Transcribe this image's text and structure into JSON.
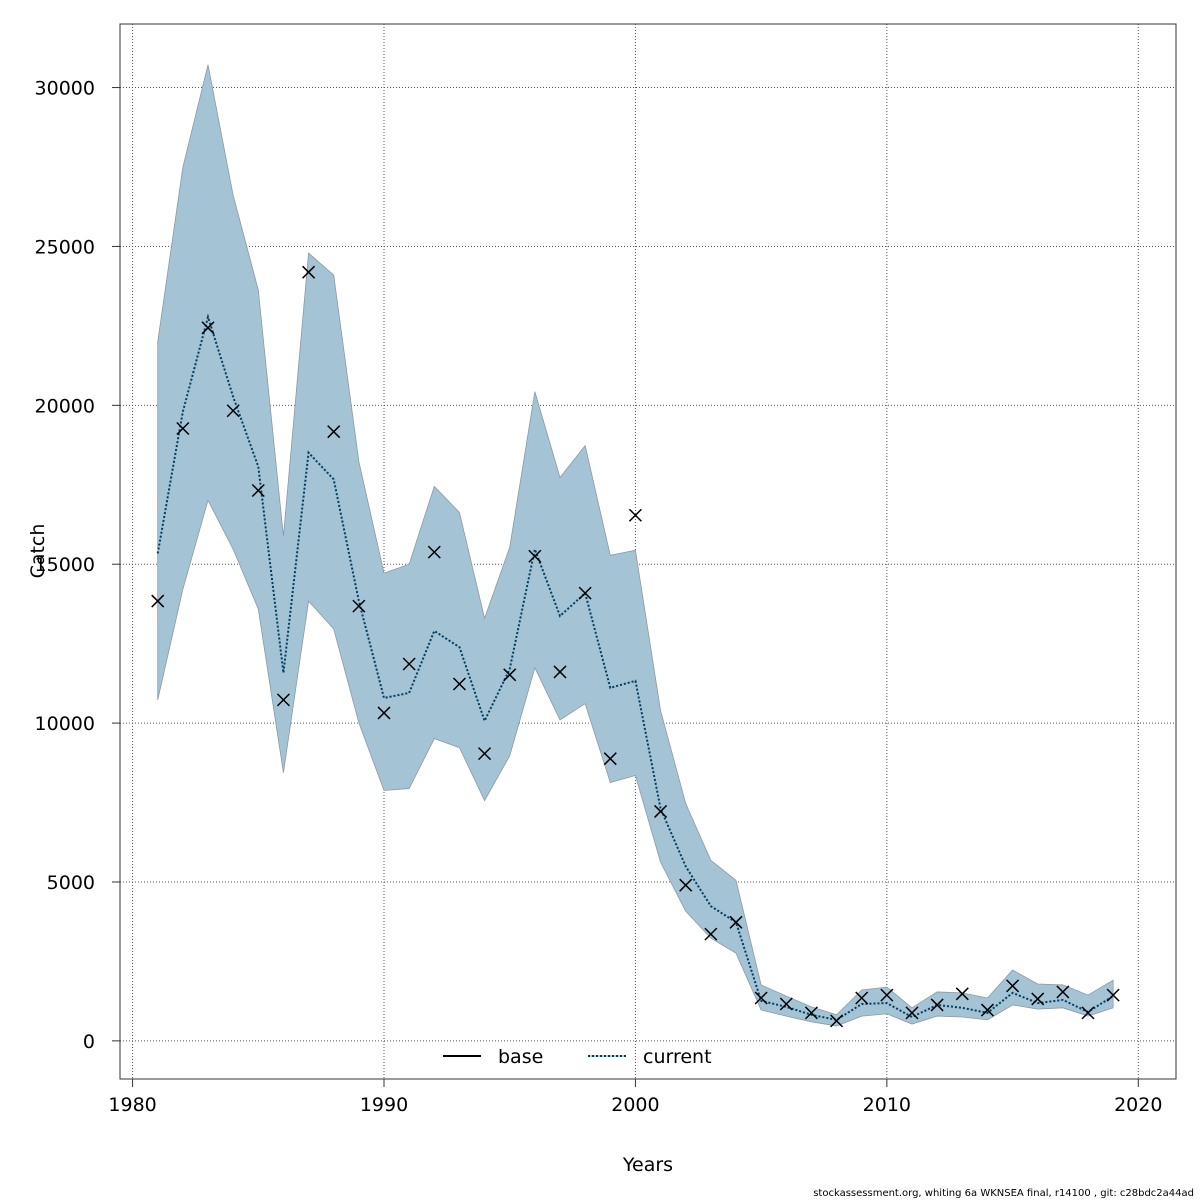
{
  "chart_data": {
    "type": "line",
    "xlabel": "Years",
    "ylabel": "Catch",
    "xlim": [
      1979.5,
      2021.5
    ],
    "ylim": [
      -1200,
      32000
    ],
    "xticks": [
      1980,
      1990,
      2000,
      2010,
      2020
    ],
    "yticks": [
      0,
      5000,
      10000,
      15000,
      20000,
      25000,
      30000
    ],
    "grid": true,
    "legend_position": "bottom-center",
    "legend": [
      {
        "name": "base",
        "style": "solid",
        "color": "#000000"
      },
      {
        "name": "current",
        "style": "dotted",
        "color": "#0b3a5a"
      }
    ],
    "colors": {
      "band": "#a4c4d6",
      "band_edge": "#8a9aa4",
      "observed": "#000000"
    },
    "x": [
      1981,
      1982,
      1983,
      1984,
      1985,
      1986,
      1987,
      1988,
      1989,
      1990,
      1991,
      1992,
      1993,
      1994,
      1995,
      1996,
      1997,
      1998,
      1999,
      2000,
      2001,
      2002,
      2003,
      2004,
      2005,
      2006,
      2007,
      2008,
      2009,
      2010,
      2011,
      2012,
      2013,
      2014,
      2015,
      2016,
      2017,
      2018,
      2019
    ],
    "observed": [
      13840,
      19270,
      22440,
      19830,
      17320,
      10730,
      24190,
      19170,
      13680,
      10320,
      11860,
      15380,
      11230,
      9040,
      11520,
      15250,
      11610,
      14090,
      8880,
      16540,
      7220,
      4900,
      3360,
      3730,
      1350,
      1160,
      880,
      630,
      1350,
      1440,
      880,
      1130,
      1480,
      970,
      1730,
      1320,
      1540,
      880,
      1440
    ],
    "current": [
      15340,
      19800,
      22780,
      20270,
      18070,
      11580,
      18510,
      17670,
      13840,
      10790,
      10950,
      12900,
      12390,
      10070,
      11700,
      15470,
      13370,
      14090,
      11110,
      11330,
      7310,
      5490,
      4240,
      3730,
      1260,
      1070,
      820,
      660,
      1160,
      1190,
      750,
      1130,
      1040,
      880,
      1510,
      1190,
      1290,
      910,
      1410
    ],
    "upper": [
      22000,
      27490,
      30720,
      26610,
      23630,
      15880,
      24790,
      24100,
      18230,
      14720,
      15000,
      17450,
      16630,
      13300,
      15530,
      20430,
      17730,
      18730,
      15280,
      15440,
      10390,
      7470,
      5680,
      5050,
      1760,
      1410,
      1070,
      820,
      1600,
      1690,
      1040,
      1540,
      1510,
      1350,
      2230,
      1790,
      1760,
      1440,
      1910
    ],
    "lower": [
      10730,
      14210,
      17010,
      15470,
      13590,
      8440,
      13840,
      12960,
      10010,
      7880,
      7940,
      9510,
      9230,
      7560,
      8970,
      11740,
      10100,
      10610,
      8130,
      8350,
      5620,
      4080,
      3230,
      2760,
      970,
      780,
      600,
      470,
      780,
      850,
      530,
      780,
      750,
      660,
      1130,
      1000,
      1040,
      780,
      1040
    ]
  },
  "footer": "stockassessment.org, whiting 6a WKNSEA final, r14100 , git: c28bdc2a44ad"
}
